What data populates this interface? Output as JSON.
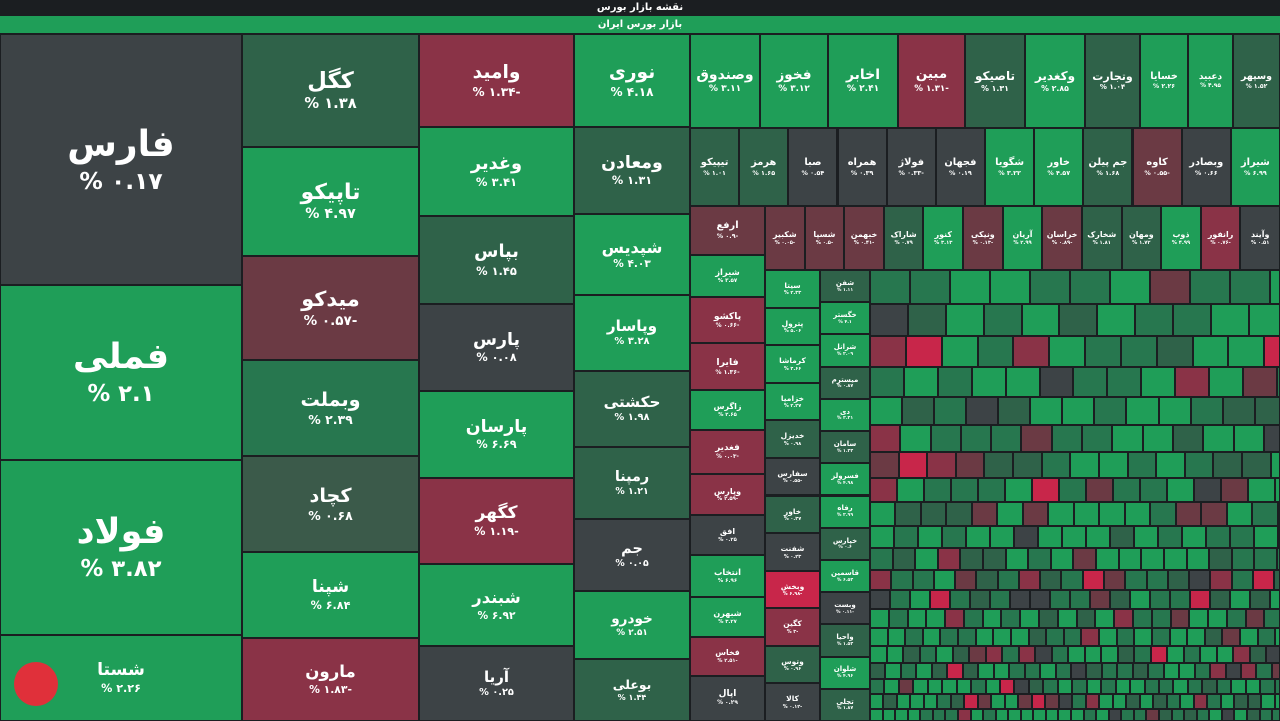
{
  "header": {
    "title": "نقشه بازار بورس",
    "market": "بازار بورس ایران"
  },
  "tiles": [
    {
      "name": "فارس",
      "change": "۰.۱۷ %",
      "color": "#3d4346"
    },
    {
      "name": "فملی",
      "change": "۲.۱ %",
      "color": "#1f9e58"
    },
    {
      "name": "فولاد",
      "change": "۳.۸۲ %",
      "color": "#1f9e58"
    },
    {
      "name": "شستا",
      "change": "۲.۲۶ %",
      "color": "#1f9e58"
    },
    {
      "name": "کگل",
      "change": "۱.۳۸ %",
      "color": "#2f6249"
    },
    {
      "name": "تاپیکو",
      "change": "۴.۹۷ %",
      "color": "#1f9e58"
    },
    {
      "name": "میدکو",
      "change": "-۰.۵۷ %",
      "color": "#6b3a44"
    },
    {
      "name": "وبملت",
      "change": "۲.۳۹ %",
      "color": "#27774f"
    },
    {
      "name": "کچاد",
      "change": "۰.۶۸ %",
      "color": "#3b5a4a"
    },
    {
      "name": "شپنا",
      "change": "۶.۸۴ %",
      "color": "#1f9e58"
    },
    {
      "name": "مارون",
      "change": "-۱.۸۳ %",
      "color": "#8a3347"
    },
    {
      "name": "وامید",
      "change": "-۱.۳۴ %",
      "color": "#8a3347"
    },
    {
      "name": "وغدیر",
      "change": "۳.۴۱ %",
      "color": "#1f9e58"
    },
    {
      "name": "بپاس",
      "change": "۱.۴۵ %",
      "color": "#2f6249"
    },
    {
      "name": "پارس",
      "change": "۰.۰۸ %",
      "color": "#3d4346"
    },
    {
      "name": "پارسان",
      "change": "۶.۶۹ %",
      "color": "#1f9e58"
    },
    {
      "name": "کگهر",
      "change": "-۱.۱۹ %",
      "color": "#8a3347"
    },
    {
      "name": "شبندر",
      "change": "۶.۹۲ %",
      "color": "#1f9e58"
    },
    {
      "name": "آریا",
      "change": "۰.۲۵ %",
      "color": "#3d4346"
    },
    {
      "name": "نوری",
      "change": "۴.۱۸ %",
      "color": "#1f9e58"
    },
    {
      "name": "ومعادن",
      "change": "۱.۳۱ %",
      "color": "#2f6249"
    },
    {
      "name": "شپدیس",
      "change": "۴.۰۳ %",
      "color": "#1f9e58"
    },
    {
      "name": "وپاسار",
      "change": "۳.۲۸ %",
      "color": "#1f9e58"
    },
    {
      "name": "حکشتی",
      "change": "۱.۹۸ %",
      "color": "#2f6249"
    },
    {
      "name": "رمپنا",
      "change": "۱.۲۱ %",
      "color": "#2f6249"
    },
    {
      "name": "جم",
      "change": "۰.۰۵ %",
      "color": "#3d4346"
    },
    {
      "name": "خودرو",
      "change": "۲.۵۱ %",
      "color": "#1f9e58"
    },
    {
      "name": "بوعلی",
      "change": "۱.۴۴ %",
      "color": "#2f6249"
    },
    {
      "name": "وصندوق",
      "change": "۳.۱۱ %",
      "color": "#1f9e58"
    },
    {
      "name": "فخوز",
      "change": "۳.۱۲ %",
      "color": "#1f9e58"
    },
    {
      "name": "اخابر",
      "change": "۲.۴۱ %",
      "color": "#1f9e58"
    },
    {
      "name": "مبین",
      "change": "-۱.۳۱ %",
      "color": "#8a3347"
    },
    {
      "name": "تاصیکو",
      "change": "۱.۳۱ %",
      "color": "#2f6249"
    },
    {
      "name": "وکغدیر",
      "change": "۲.۸۵ %",
      "color": "#1f9e58"
    },
    {
      "name": "وتجارت",
      "change": "۱.۰۴ %",
      "color": "#2f6249"
    },
    {
      "name": "خسایا",
      "change": "۲.۲۶ %",
      "color": "#1f9e58"
    },
    {
      "name": "دعبید",
      "change": "۴.۹۵ %",
      "color": "#1f9e58"
    },
    {
      "name": "وسپهر",
      "change": "۱.۵۲ %",
      "color": "#2f6249"
    },
    {
      "name": "تیپیکو",
      "change": "۱.۰۱ %",
      "color": "#2f6249"
    },
    {
      "name": "هرمز",
      "change": "۱.۶۵ %",
      "color": "#2f6249"
    },
    {
      "name": "صبا",
      "change": "۰.۵۴ %",
      "color": "#3d4346"
    },
    {
      "name": "همراه",
      "change": "۰.۳۹ %",
      "color": "#3d4346"
    },
    {
      "name": "فولاژ",
      "change": "-۰.۳۳ %",
      "color": "#3d4346"
    },
    {
      "name": "فجهان",
      "change": "۰.۱۹ %",
      "color": "#3d4346"
    },
    {
      "name": "شگویا",
      "change": "۳.۲۲ %",
      "color": "#1f9e58"
    },
    {
      "name": "خاور",
      "change": "۴.۵۷ %",
      "color": "#1f9e58"
    },
    {
      "name": "جم پیلن",
      "change": "۱.۶۸ %",
      "color": "#2f6249"
    },
    {
      "name": "کاوه",
      "change": "-۰.۵۵ %",
      "color": "#6b3a44"
    },
    {
      "name": "وبصادر",
      "change": "۰.۶۶ %",
      "color": "#3d4346"
    },
    {
      "name": "شیراز",
      "change": "۶.۹۹ %",
      "color": "#1f9e58"
    },
    {
      "name": "ارفع",
      "change": "-۰.۹ %",
      "color": "#6b3a44"
    },
    {
      "name": "شیراز",
      "change": "۳.۵۷ %",
      "color": "#1f9e58"
    },
    {
      "name": "پاکشو",
      "change": "-۰.۶۶ %",
      "color": "#8a3347"
    },
    {
      "name": "فایرا",
      "change": "-۱.۳۶ %",
      "color": "#8a3347"
    },
    {
      "name": "زاگرس",
      "change": "۲.۶۵ %",
      "color": "#1f9e58"
    },
    {
      "name": "فغدیر",
      "change": "-۰.۰۳ %",
      "color": "#8a3347"
    },
    {
      "name": "وپارس",
      "change": "-۲.۵۹ %",
      "color": "#8a3347"
    },
    {
      "name": "افق",
      "change": "۰.۲۵ %",
      "color": "#3d4346"
    },
    {
      "name": "انتخاب",
      "change": "۶.۹۶ %",
      "color": "#1f9e58"
    },
    {
      "name": "شبهرن",
      "change": "۳.۲۷ %",
      "color": "#1f9e58"
    },
    {
      "name": "فخاس",
      "change": "-۲.۵۱ %",
      "color": "#8a3347"
    },
    {
      "name": "اپال",
      "change": "۰.۲۹ %",
      "color": "#3d4346"
    },
    {
      "name": "شکبیر",
      "change": "-۰.۰۵ %",
      "color": "#6b3a44"
    },
    {
      "name": "شسپا",
      "change": "-۰.۵ %",
      "color": "#6b3a44"
    },
    {
      "name": "خبهمن",
      "change": "-۰.۴۱ %",
      "color": "#6b3a44"
    },
    {
      "name": "شاراک",
      "change": "۰.۷۹ %",
      "color": "#2f6249"
    },
    {
      "name": "کنور",
      "change": "۳.۱۳ %",
      "color": "#1f9e58"
    },
    {
      "name": "ونیکی",
      "change": "-۰.۱۳ %",
      "color": "#6b3a44"
    },
    {
      "name": "آریان",
      "change": "۲.۹۹ %",
      "color": "#1f9e58"
    },
    {
      "name": "خراسان",
      "change": "-۰.۸۹ %",
      "color": "#6b3a44"
    },
    {
      "name": "شخارک",
      "change": "۱.۸۱ %",
      "color": "#2f6249"
    },
    {
      "name": "ومهان",
      "change": "۱.۷۲ %",
      "color": "#2f6249"
    },
    {
      "name": "ذوب",
      "change": "۴.۹۹ %",
      "color": "#1f9e58"
    },
    {
      "name": "رانفور",
      "change": "-۰.۷۶ %",
      "color": "#8a3347"
    },
    {
      "name": "وآیند",
      "change": "۰.۵۱ %",
      "color": "#3d4346"
    },
    {
      "name": "سیتا",
      "change": "۲.۳۳ %",
      "color": "#1f9e58"
    },
    {
      "name": "پترول",
      "change": "۵.۰۶ %",
      "color": "#1f9e58"
    },
    {
      "name": "کرماشا",
      "change": "۴.۶۶ %",
      "color": "#1f9e58"
    },
    {
      "name": "خزامیا",
      "change": "۲.۲۷ %",
      "color": "#1f9e58"
    },
    {
      "name": "خدیزل",
      "change": "۰.۹۸ %",
      "color": "#2f6249"
    },
    {
      "name": "سفارس",
      "change": "-۰.۵۵ %",
      "color": "#3d4346"
    },
    {
      "name": "خاور",
      "change": "۰.۴۷ %",
      "color": "#2f6249"
    },
    {
      "name": "شفنت",
      "change": "۰.۲۳ %",
      "color": "#3d4346"
    },
    {
      "name": "وبخش",
      "change": "-۶.۹۸ %",
      "color": "#c8264a"
    },
    {
      "name": "کگین",
      "change": "-۳ %",
      "color": "#8a3347"
    },
    {
      "name": "وتوس",
      "change": "۰.۹۶ %",
      "color": "#2f6249"
    },
    {
      "name": "کالا",
      "change": "-۰.۱۲ %",
      "color": "#3d4346"
    },
    {
      "name": "شفن",
      "change": "۱.۱۱ %",
      "color": "#2f6249"
    },
    {
      "name": "خگستر",
      "change": "۴.۱ %",
      "color": "#1f9e58"
    },
    {
      "name": "شرانل",
      "change": "۲.۰۹ %",
      "color": "#1f9e58"
    },
    {
      "name": "میسترم",
      "change": "۰.۸۷ %",
      "color": "#2f6249"
    },
    {
      "name": "دی",
      "change": "۳.۲۱ %",
      "color": "#1f9e58"
    },
    {
      "name": "سامان",
      "change": "۱.۲۳ %",
      "color": "#2f6249"
    },
    {
      "name": "فسرولز",
      "change": "۴.۹۸ %",
      "color": "#1f9e58"
    },
    {
      "name": "رفاه",
      "change": "۲.۹۹ %",
      "color": "#1f9e58"
    },
    {
      "name": "خپارس",
      "change": "۰.۶ %",
      "color": "#2f6249"
    },
    {
      "name": "قاسمین",
      "change": "۶.۵۳ %",
      "color": "#1f9e58"
    },
    {
      "name": "وبست",
      "change": "-۰.۱۱ %",
      "color": "#3d4346"
    },
    {
      "name": "واحیا",
      "change": "۱.۵۳ %",
      "color": "#2f6249"
    },
    {
      "name": "شلوان",
      "change": "۴.۹۶ %",
      "color": "#1f9e58"
    },
    {
      "name": "تجلی",
      "change": "۱.۸۷ %",
      "color": "#2f6249"
    }
  ]
}
